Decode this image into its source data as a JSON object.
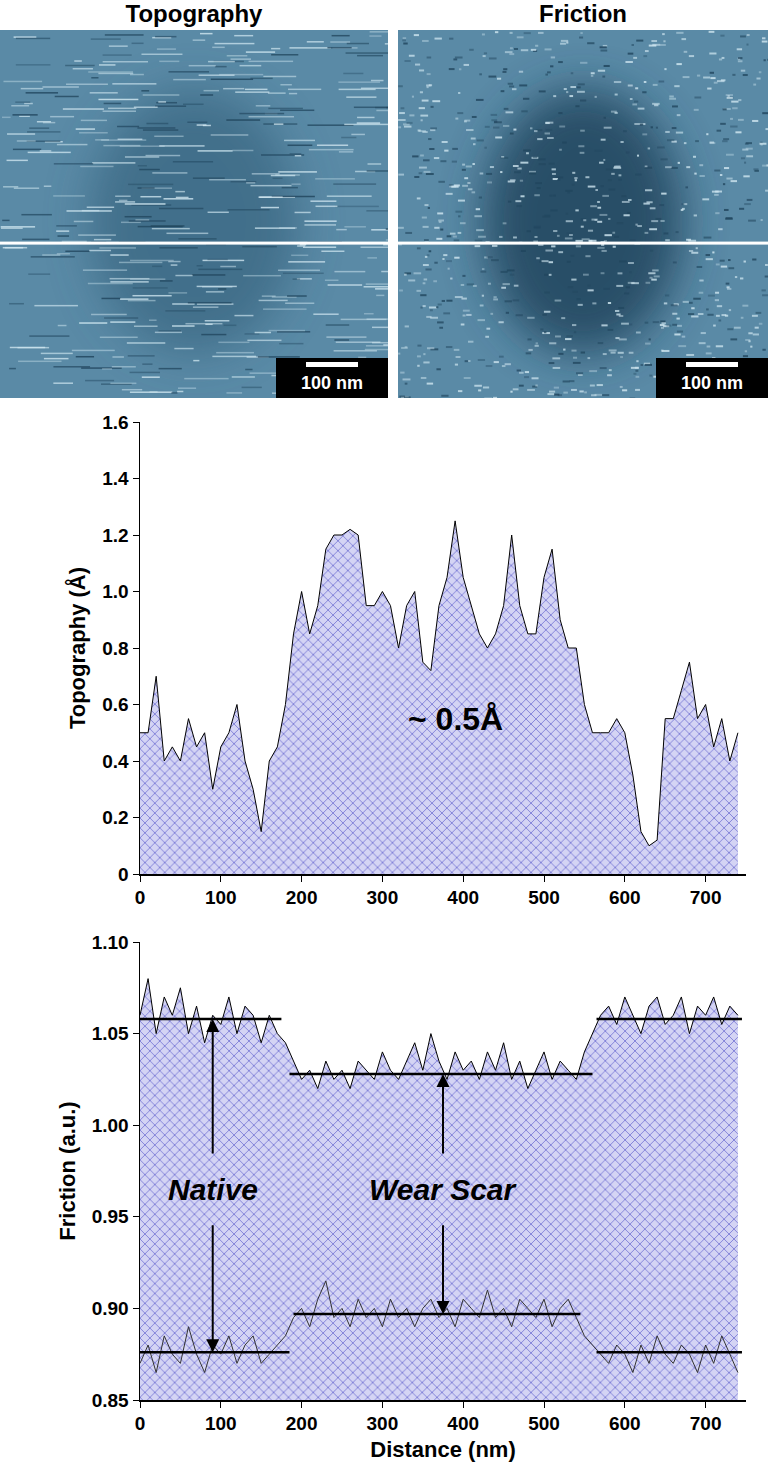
{
  "images": {
    "panels": [
      {
        "title": "Topography",
        "scale_bar": "100 nm"
      },
      {
        "title": "Friction",
        "scale_bar": "100 nm"
      }
    ]
  },
  "chart_data": [
    {
      "type": "area",
      "x_label": null,
      "y_label": "Topography (Å)",
      "x": [
        0,
        10,
        20,
        30,
        40,
        50,
        60,
        70,
        80,
        90,
        100,
        110,
        120,
        130,
        140,
        150,
        160,
        170,
        180,
        190,
        200,
        210,
        220,
        230,
        240,
        250,
        260,
        270,
        280,
        290,
        300,
        310,
        320,
        330,
        340,
        350,
        360,
        370,
        380,
        390,
        400,
        410,
        420,
        430,
        440,
        450,
        460,
        470,
        480,
        490,
        500,
        510,
        520,
        530,
        540,
        550,
        560,
        570,
        580,
        590,
        600,
        610,
        620,
        630,
        640,
        650,
        660,
        670,
        680,
        690,
        700,
        710,
        720,
        730,
        740
      ],
      "series": [
        {
          "color": "#8080d8",
          "values": [
            0.5,
            0.5,
            0.7,
            0.4,
            0.45,
            0.4,
            0.55,
            0.45,
            0.5,
            0.3,
            0.45,
            0.5,
            0.6,
            0.4,
            0.3,
            0.15,
            0.4,
            0.45,
            0.6,
            0.85,
            1.0,
            0.85,
            0.95,
            1.15,
            1.2,
            1.2,
            1.22,
            1.2,
            0.95,
            0.95,
            1.0,
            0.95,
            0.8,
            0.95,
            1.0,
            0.75,
            0.72,
            0.95,
            1.05,
            1.25,
            1.05,
            0.95,
            0.85,
            0.8,
            0.85,
            0.95,
            1.2,
            0.95,
            0.85,
            0.85,
            1.05,
            1.15,
            0.9,
            0.8,
            0.8,
            0.6,
            0.5,
            0.5,
            0.5,
            0.55,
            0.5,
            0.35,
            0.15,
            0.1,
            0.12,
            0.55,
            0.55,
            0.65,
            0.75,
            0.55,
            0.6,
            0.45,
            0.55,
            0.4,
            0.5
          ]
        }
      ],
      "xlim": [
        0,
        750
      ],
      "xticks": [
        0,
        100,
        200,
        300,
        400,
        500,
        600,
        700
      ],
      "ylim": [
        0,
        1.6
      ],
      "yticks": [
        0,
        0.2,
        0.4,
        0.6,
        0.8,
        {
          "value": 1,
          "label": "1.0"
        },
        1.2,
        1.4,
        1.6
      ],
      "annotations": [
        {
          "text": "~ 0.5Å",
          "x": 390,
          "y": 0.55
        }
      ],
      "grid": false
    },
    {
      "type": "line",
      "x_label": "Distance (nm)",
      "y_label": "Friction (a.u.)",
      "x": [
        0,
        10,
        20,
        30,
        40,
        50,
        60,
        70,
        80,
        90,
        100,
        110,
        120,
        130,
        140,
        150,
        160,
        170,
        180,
        190,
        200,
        210,
        220,
        230,
        240,
        250,
        260,
        270,
        280,
        290,
        300,
        310,
        320,
        330,
        340,
        350,
        360,
        370,
        380,
        390,
        400,
        410,
        420,
        430,
        440,
        450,
        460,
        470,
        480,
        490,
        500,
        510,
        520,
        530,
        540,
        550,
        560,
        570,
        580,
        590,
        600,
        610,
        620,
        630,
        640,
        650,
        660,
        670,
        680,
        690,
        700,
        710,
        720,
        730,
        740
      ],
      "series": [
        {
          "type": "area",
          "color": "#8080d8",
          "values": [
            1.06,
            1.08,
            1.05,
            1.07,
            1.06,
            1.075,
            1.05,
            1.065,
            1.045,
            1.06,
            1.055,
            1.07,
            1.05,
            1.065,
            1.06,
            1.045,
            1.06,
            1.05,
            1.045,
            1.035,
            1.025,
            1.03,
            1.02,
            1.035,
            1.025,
            1.03,
            1.02,
            1.035,
            1.03,
            1.025,
            1.04,
            1.03,
            1.025,
            1.035,
            1.045,
            1.03,
            1.05,
            1.035,
            1.025,
            1.04,
            1.03,
            1.035,
            1.025,
            1.04,
            1.03,
            1.045,
            1.025,
            1.035,
            1.02,
            1.03,
            1.04,
            1.025,
            1.035,
            1.03,
            1.025,
            1.04,
            1.05,
            1.06,
            1.065,
            1.055,
            1.07,
            1.06,
            1.05,
            1.065,
            1.07,
            1.055,
            1.06,
            1.07,
            1.05,
            1.065,
            1.06,
            1.07,
            1.055,
            1.065,
            1.06
          ]
        },
        {
          "type": "line",
          "color": "#333333",
          "values": [
            0.87,
            0.88,
            0.865,
            0.885,
            0.875,
            0.87,
            0.89,
            0.875,
            0.865,
            0.88,
            0.875,
            0.885,
            0.87,
            0.88,
            0.885,
            0.87,
            0.875,
            0.88,
            0.885,
            0.895,
            0.9,
            0.89,
            0.905,
            0.915,
            0.895,
            0.9,
            0.89,
            0.905,
            0.895,
            0.9,
            0.89,
            0.905,
            0.895,
            0.9,
            0.89,
            0.9,
            0.905,
            0.895,
            0.9,
            0.89,
            0.905,
            0.9,
            0.895,
            0.91,
            0.895,
            0.9,
            0.89,
            0.905,
            0.9,
            0.895,
            0.905,
            0.89,
            0.9,
            0.905,
            0.895,
            0.885,
            0.88,
            0.875,
            0.87,
            0.88,
            0.875,
            0.865,
            0.88,
            0.87,
            0.885,
            0.875,
            0.87,
            0.88,
            0.875,
            0.865,
            0.88,
            0.87,
            0.885,
            0.875,
            0.865
          ]
        },
        {
          "type": "step",
          "color": "#000000",
          "line_style": "solid",
          "x": [
            0,
            175,
            176,
            185,
            560,
            561,
            565,
            745
          ],
          "values": [
            1.058,
            1.058,
            null,
            1.028,
            1.028,
            null,
            1.058,
            1.058
          ]
        },
        {
          "type": "step",
          "color": "#000000",
          "line_style": "solid",
          "x": [
            0,
            185,
            186,
            190,
            545,
            546,
            565,
            745
          ],
          "values": [
            0.876,
            0.876,
            null,
            0.897,
            0.897,
            null,
            0.876,
            0.876
          ]
        }
      ],
      "xlim": [
        0,
        750
      ],
      "xticks": [
        0,
        100,
        200,
        300,
        400,
        500,
        600,
        700
      ],
      "ylim": [
        0.85,
        1.1
      ],
      "yticks": [
        0.85,
        {
          "value": 0.9,
          "label": "0.90"
        },
        0.95,
        {
          "value": 1,
          "label": "1.00"
        },
        1.05,
        {
          "value": 1.1,
          "label": "1.10"
        }
      ],
      "annotations": [
        {
          "text": "Native",
          "x": 90,
          "y": 0.965
        },
        {
          "text": "Wear Scar",
          "x": 375,
          "y": 0.965
        }
      ],
      "grid": false
    }
  ]
}
